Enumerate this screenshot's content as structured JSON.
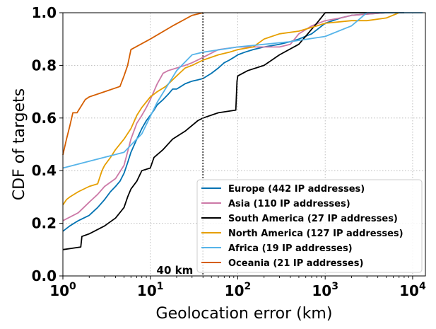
{
  "chart_data": {
    "type": "line",
    "xlabel": "Geolocation error (km)",
    "ylabel": "CDF of targets",
    "xscale": "log",
    "xlim": [
      1,
      14000
    ],
    "ylim": [
      0,
      1.0
    ],
    "grid": true,
    "legend_position": "lower-right",
    "x_ticks": [
      1,
      10,
      100,
      1000,
      10000
    ],
    "x_tick_labels": [
      {
        "base": "10",
        "exp": "0"
      },
      {
        "base": "10",
        "exp": "1"
      },
      {
        "base": "10",
        "exp": "2"
      },
      {
        "base": "10",
        "exp": "3"
      },
      {
        "base": "10",
        "exp": "4"
      }
    ],
    "y_ticks": [
      0.0,
      0.2,
      0.4,
      0.6,
      0.8,
      1.0
    ],
    "y_tick_labels": [
      "0.0",
      "0.2",
      "0.4",
      "0.6",
      "0.8",
      "1.0"
    ],
    "reference_line": {
      "x": 40,
      "label": "40 km"
    },
    "series": [
      {
        "name": "Europe (442 IP addresses)",
        "color": "#0072b2",
        "x": [
          1,
          1.2,
          1.5,
          2,
          2.5,
          3,
          3.5,
          4,
          4.5,
          5,
          5.5,
          6,
          7,
          8,
          9,
          10,
          11,
          12,
          14,
          16,
          18,
          20,
          25,
          30,
          35,
          40,
          50,
          60,
          70,
          80,
          90,
          100,
          120,
          150,
          200,
          300,
          400,
          500,
          700,
          1000,
          1500,
          2000,
          3000,
          5000,
          8000
        ],
        "y": [
          0.17,
          0.19,
          0.21,
          0.23,
          0.26,
          0.29,
          0.32,
          0.34,
          0.36,
          0.39,
          0.43,
          0.47,
          0.52,
          0.56,
          0.59,
          0.61,
          0.63,
          0.65,
          0.67,
          0.69,
          0.71,
          0.71,
          0.73,
          0.74,
          0.745,
          0.75,
          0.77,
          0.79,
          0.81,
          0.82,
          0.83,
          0.84,
          0.85,
          0.86,
          0.87,
          0.88,
          0.89,
          0.9,
          0.92,
          0.96,
          0.98,
          0.99,
          0.995,
          1.0,
          1.0
        ]
      },
      {
        "name": "Asia (110 IP addresses)",
        "color": "#cc79a7",
        "x": [
          1,
          1.5,
          2,
          2.5,
          3,
          4,
          5,
          6,
          7,
          8,
          9,
          10,
          12,
          14,
          16,
          20,
          25,
          30,
          40,
          60,
          100,
          200,
          300,
          400,
          500,
          700,
          1000,
          1500,
          2000,
          5000,
          8000
        ],
        "y": [
          0.21,
          0.24,
          0.28,
          0.31,
          0.34,
          0.37,
          0.42,
          0.52,
          0.58,
          0.61,
          0.64,
          0.67,
          0.73,
          0.77,
          0.78,
          0.79,
          0.8,
          0.81,
          0.83,
          0.86,
          0.87,
          0.87,
          0.87,
          0.88,
          0.92,
          0.95,
          0.97,
          0.98,
          0.99,
          1.0,
          1.0
        ]
      },
      {
        "name": "South America (27 IP addresses)",
        "color": "#000000",
        "x": [
          1,
          1.6,
          1.65,
          2,
          3,
          4,
          5,
          5.5,
          6,
          7,
          8,
          10,
          11,
          14,
          18,
          25,
          35,
          40,
          60,
          95,
          98,
          100,
          130,
          200,
          300,
          500,
          800,
          1000,
          2000,
          5000,
          8000
        ],
        "y": [
          0.1,
          0.11,
          0.15,
          0.16,
          0.19,
          0.22,
          0.26,
          0.3,
          0.33,
          0.36,
          0.4,
          0.41,
          0.45,
          0.48,
          0.52,
          0.55,
          0.59,
          0.6,
          0.62,
          0.63,
          0.74,
          0.76,
          0.78,
          0.8,
          0.84,
          0.88,
          0.96,
          1.0,
          1.0,
          1.0,
          1.0
        ]
      },
      {
        "name": "North America (127 IP addresses)",
        "color": "#e69f00",
        "x": [
          1,
          1.1,
          1.2,
          1.5,
          2,
          2.5,
          2.8,
          3,
          3.5,
          4,
          5,
          6,
          7,
          8,
          10,
          12,
          15,
          20,
          25,
          30,
          40,
          60,
          80,
          100,
          150,
          200,
          300,
          500,
          800,
          1000,
          2000,
          3000,
          5000,
          7000
        ],
        "y": [
          0.27,
          0.29,
          0.3,
          0.32,
          0.34,
          0.35,
          0.4,
          0.42,
          0.45,
          0.48,
          0.52,
          0.56,
          0.61,
          0.64,
          0.68,
          0.7,
          0.72,
          0.76,
          0.79,
          0.8,
          0.82,
          0.84,
          0.85,
          0.86,
          0.87,
          0.9,
          0.92,
          0.93,
          0.95,
          0.96,
          0.97,
          0.97,
          0.98,
          1.0
        ]
      },
      {
        "name": "Africa (19 IP addresses)",
        "color": "#56b4e9",
        "x": [
          1,
          5,
          8,
          12,
          20,
          30,
          40,
          100,
          400,
          1000,
          2000,
          3000,
          13000
        ],
        "y": [
          0.41,
          0.47,
          0.54,
          0.66,
          0.78,
          0.84,
          0.85,
          0.87,
          0.89,
          0.91,
          0.95,
          1.0,
          1.0
        ]
      },
      {
        "name": "Oceania (21 IP addresses)",
        "color": "#d55e00",
        "x": [
          1,
          1.1,
          1.2,
          1.3,
          1.45,
          1.8,
          2,
          3,
          4.5,
          5,
          5.5,
          6,
          10,
          18,
          30,
          40
        ],
        "y": [
          0.46,
          0.52,
          0.57,
          0.62,
          0.62,
          0.67,
          0.68,
          0.7,
          0.72,
          0.76,
          0.8,
          0.86,
          0.9,
          0.95,
          0.99,
          1.0
        ]
      }
    ]
  }
}
